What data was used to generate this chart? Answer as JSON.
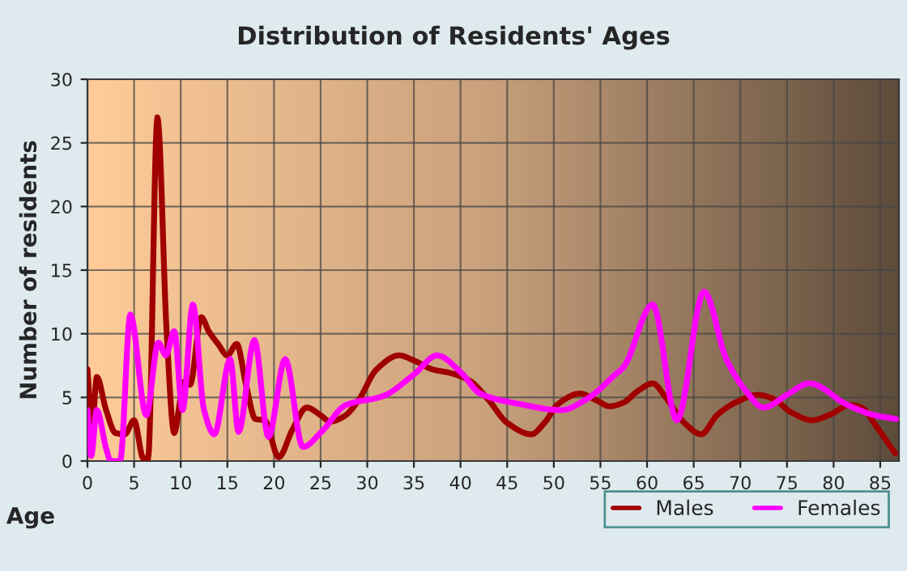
{
  "chart_data": {
    "type": "line",
    "title": "Distribution of Residents' Ages",
    "xlabel": "Age",
    "ylabel": "Number of residents",
    "xlim": [
      0,
      87
    ],
    "ylim": [
      0,
      30
    ],
    "xticks": [
      0,
      5,
      10,
      15,
      20,
      25,
      30,
      35,
      40,
      45,
      50,
      55,
      60,
      65,
      70,
      75,
      80,
      85
    ],
    "yticks": [
      0,
      5,
      10,
      15,
      20,
      25,
      30
    ],
    "grid": true,
    "legend": "bottom right",
    "marker": "none",
    "line_style": "solid",
    "series": [
      {
        "name": "Males",
        "color": "#a00000",
        "x": [
          0,
          0.5,
          1,
          2,
          3,
          4,
          5,
          6,
          6.5,
          7.5,
          8.5,
          9.3,
          10,
          10.5,
          11,
          12.2,
          13,
          14,
          15,
          16,
          17,
          18,
          19,
          20.5,
          22,
          23.5,
          25,
          26,
          27.5,
          29,
          31,
          33.4,
          35,
          37,
          39,
          41,
          43,
          45,
          47.6,
          49,
          50.5,
          52.8,
          54.5,
          56,
          57.5,
          59,
          60.6,
          62,
          64,
          65.8,
          67.5,
          69.5,
          71.9,
          73.5,
          75.5,
          77.7,
          79.5,
          81.8,
          83,
          84.5,
          86.6
        ],
        "values": [
          7.2,
          2.6,
          6.6,
          4,
          2.2,
          2.1,
          3.2,
          0.2,
          0.2,
          27,
          10,
          2.2,
          5,
          6.3,
          6,
          11.3,
          10.2,
          9.2,
          8.3,
          9.2,
          6,
          3.3,
          3.2,
          0.3,
          2.5,
          4.2,
          3.6,
          3.1,
          3.5,
          4.7,
          7.2,
          8.3,
          7.9,
          7.2,
          6.9,
          6.3,
          4.8,
          3,
          2.1,
          3,
          4.5,
          5.3,
          4.8,
          4.3,
          4.6,
          5.5,
          6.1,
          5,
          3,
          2.1,
          3.6,
          4.6,
          5.2,
          4.9,
          3.8,
          3.2,
          3.6,
          4.4,
          4.2,
          2.8,
          0.6
        ]
      },
      {
        "name": "Females",
        "color": "#ff00ff",
        "x": [
          0,
          0.4,
          1,
          2,
          2.5,
          3.5,
          4.6,
          6.3,
          7.6,
          8.4,
          9.3,
          10.2,
          11.3,
          12.5,
          13.6,
          15.3,
          16.2,
          17.9,
          19.4,
          21.2,
          23.1,
          25.1,
          27.7,
          31.7,
          35,
          37.5,
          40,
          42.1,
          46.2,
          50.8,
          53.6,
          56.6,
          57.5,
          60.6,
          63.2,
          66.1,
          68.5,
          70.5,
          72.5,
          75,
          77.4,
          81.5,
          84.4,
          86.7
        ],
        "values": [
          4,
          0.4,
          4,
          1,
          0,
          0,
          11.5,
          3.6,
          9.3,
          8.3,
          10.2,
          4,
          12.3,
          4,
          2.1,
          8,
          2.3,
          9.5,
          1.9,
          8,
          1.1,
          2.3,
          4.4,
          5.1,
          6.8,
          8.3,
          7,
          5.3,
          4.5,
          4,
          4.9,
          6.8,
          7.4,
          12.3,
          3.2,
          13.3,
          8,
          5.6,
          4.2,
          5.2,
          6.1,
          4.4,
          3.6,
          3.3
        ]
      }
    ]
  }
}
